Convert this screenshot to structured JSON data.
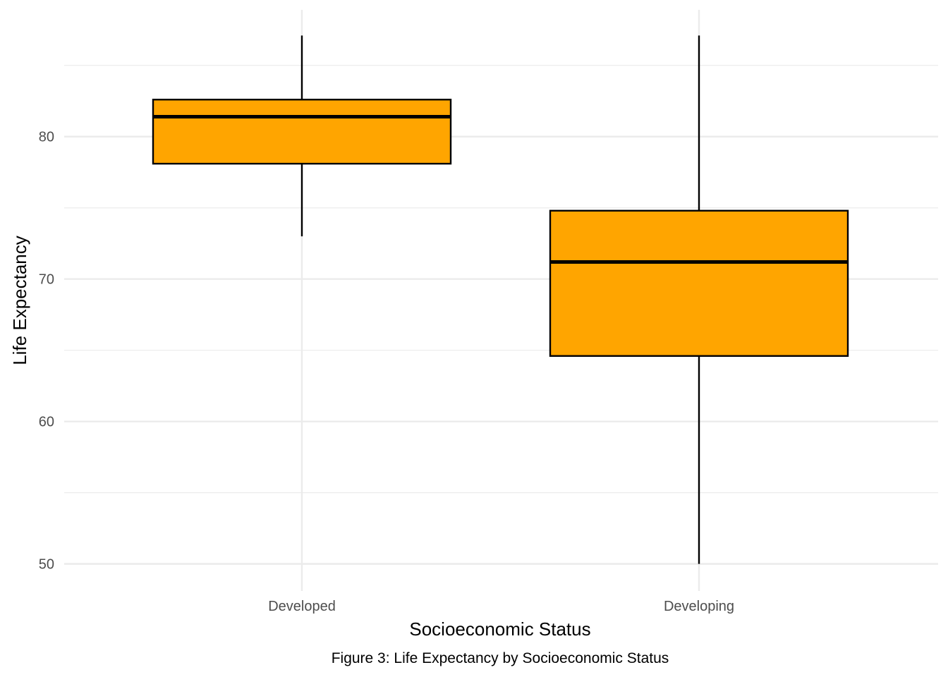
{
  "chart_data": {
    "type": "box",
    "categories": [
      "Developed",
      "Developing"
    ],
    "boxes": [
      {
        "category": "Developed",
        "whisker_low": 73.0,
        "q1": 78.1,
        "median": 81.4,
        "q3": 82.6,
        "whisker_high": 87.1
      },
      {
        "category": "Developing",
        "whisker_low": 50.0,
        "q1": 64.6,
        "median": 71.2,
        "q3": 74.8,
        "whisker_high": 87.1
      }
    ],
    "xlabel": "Socioeconomic Status",
    "ylabel": "Life Expectancy",
    "caption": "Figure 3: Life Expectancy by Socioeconomic Status",
    "ylim": [
      48.1,
      88.9
    ],
    "y_ticks": [
      50,
      60,
      70,
      80
    ],
    "y_minor_ticks": [
      55,
      65,
      75,
      85
    ],
    "grid": true,
    "legend": "none",
    "colors": {
      "box_fill": "#FFA500",
      "box_stroke": "#000000",
      "grid": "#ebebeb"
    }
  }
}
